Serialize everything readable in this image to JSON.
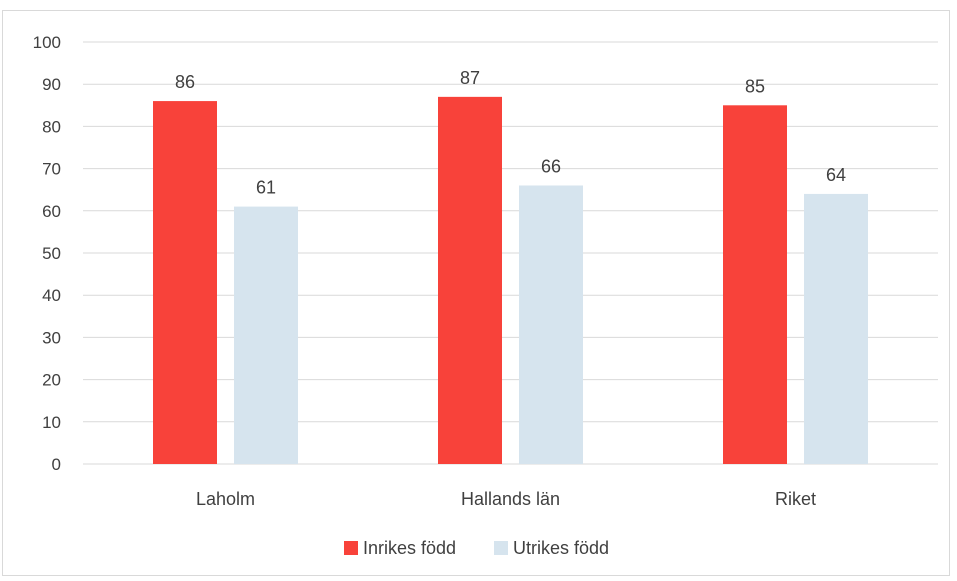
{
  "chart_data": {
    "type": "bar",
    "title": "",
    "xlabel": "",
    "ylabel": "",
    "categories": [
      "Laholm",
      "Hallands län",
      "Riket"
    ],
    "series": [
      {
        "name": "Inrikes född",
        "color": "#f8423a",
        "values": [
          86,
          87,
          85
        ]
      },
      {
        "name": "Utrikes född",
        "color": "#d6e4ee",
        "values": [
          61,
          66,
          64
        ]
      }
    ],
    "ylim": [
      0,
      100
    ],
    "yticks": [
      0,
      10,
      20,
      30,
      40,
      50,
      60,
      70,
      80,
      90,
      100
    ],
    "grid": true,
    "data_labels": true,
    "legend_position": "bottom"
  }
}
